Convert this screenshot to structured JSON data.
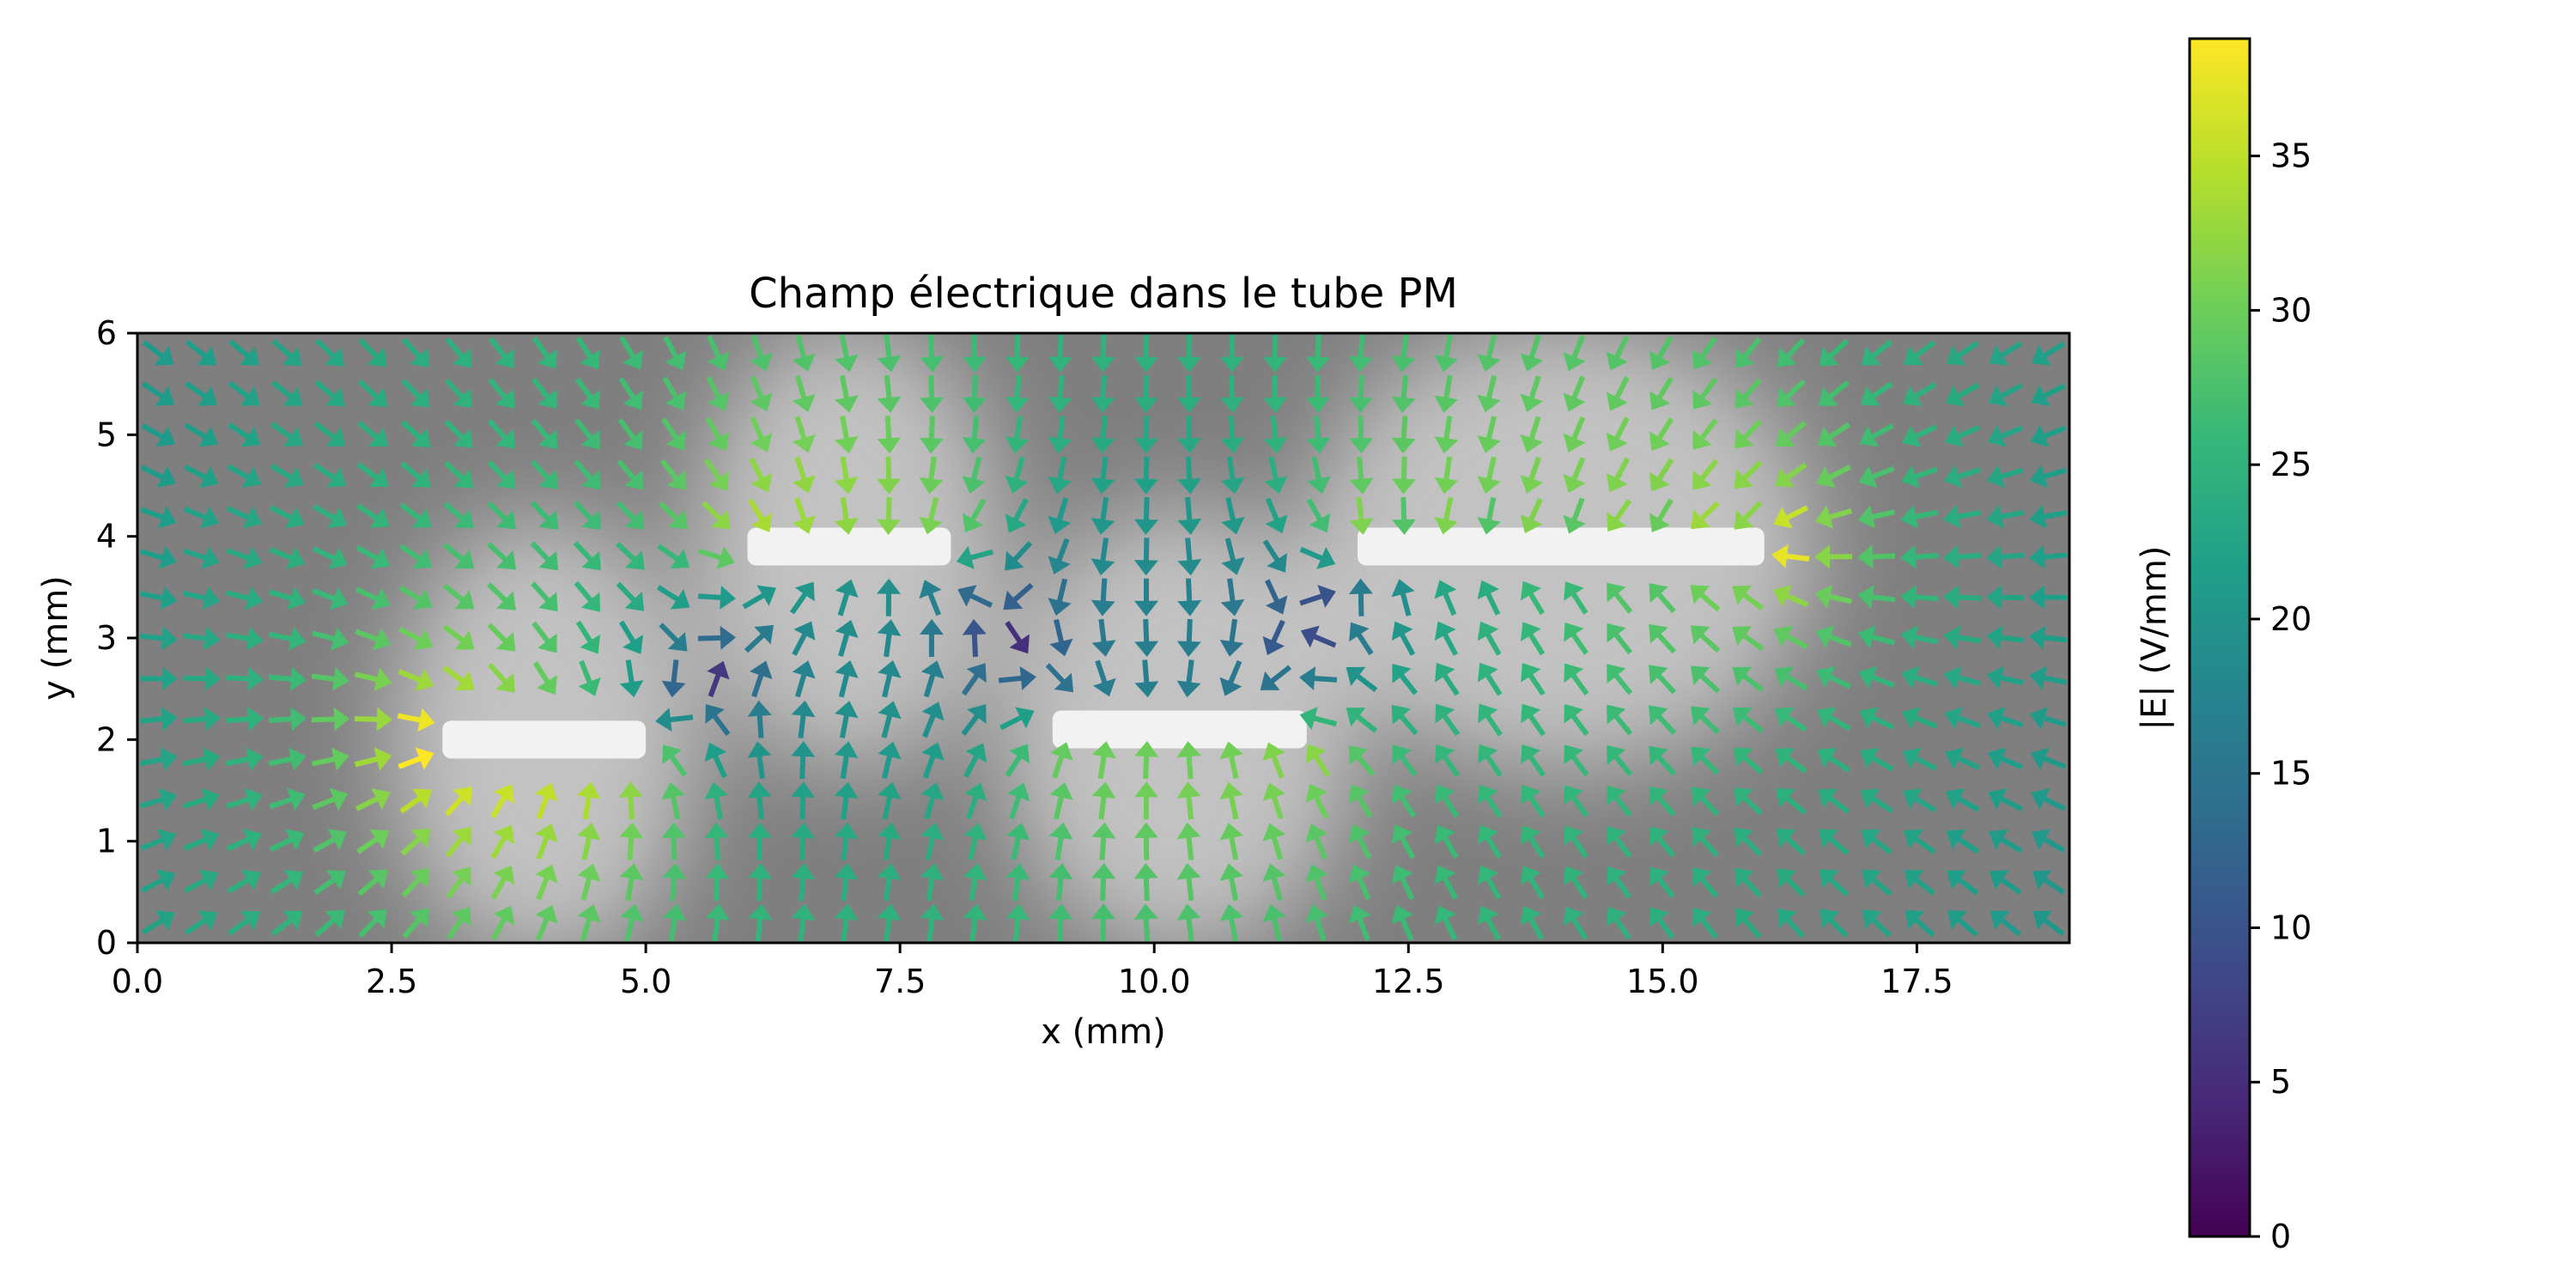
{
  "chart_data": {
    "type": "quiver",
    "title": "Champ électrique dans le tube PM",
    "xlabel": "x (mm)",
    "ylabel": "y (mm)",
    "xlim": [
      0,
      19
    ],
    "ylim": [
      0,
      6
    ],
    "xticks": [
      0,
      2.5,
      5,
      7.5,
      10,
      12.5,
      15,
      17.5
    ],
    "xtick_labels": [
      "0.0",
      "2.5",
      "5.0",
      "7.5",
      "10.0",
      "12.5",
      "15.0",
      "17.5"
    ],
    "yticks": [
      0,
      1,
      2,
      3,
      4,
      5,
      6
    ],
    "ytick_labels": [
      "0",
      "1",
      "2",
      "3",
      "4",
      "5",
      "6"
    ],
    "background": "grayscale potential map (light near electrodes, gray at boundaries)",
    "electrodes": [
      {
        "x0": 3.0,
        "x1": 5.0,
        "y": 2.0
      },
      {
        "x0": 6.0,
        "x1": 8.0,
        "y": 3.9
      },
      {
        "x0": 9.0,
        "x1": 11.5,
        "y": 2.1
      },
      {
        "x0": 12.0,
        "x1": 16.0,
        "y": 3.9
      }
    ],
    "field_max": 38.8,
    "colorbar": {
      "label": "|E| (V/mm)",
      "range": [
        0,
        38.8
      ],
      "ticks": [
        0,
        5,
        10,
        15,
        20,
        25,
        30,
        35
      ],
      "tick_labels": [
        "0",
        "5",
        "10",
        "15",
        "20",
        "25",
        "30",
        "35"
      ],
      "colormap": "viridis"
    }
  },
  "colors": {
    "viridis": [
      "#440154",
      "#482878",
      "#3e4a89",
      "#31688e",
      "#26828e",
      "#1f9e89",
      "#35b779",
      "#6ece58",
      "#b5de2b",
      "#fde725"
    ]
  }
}
